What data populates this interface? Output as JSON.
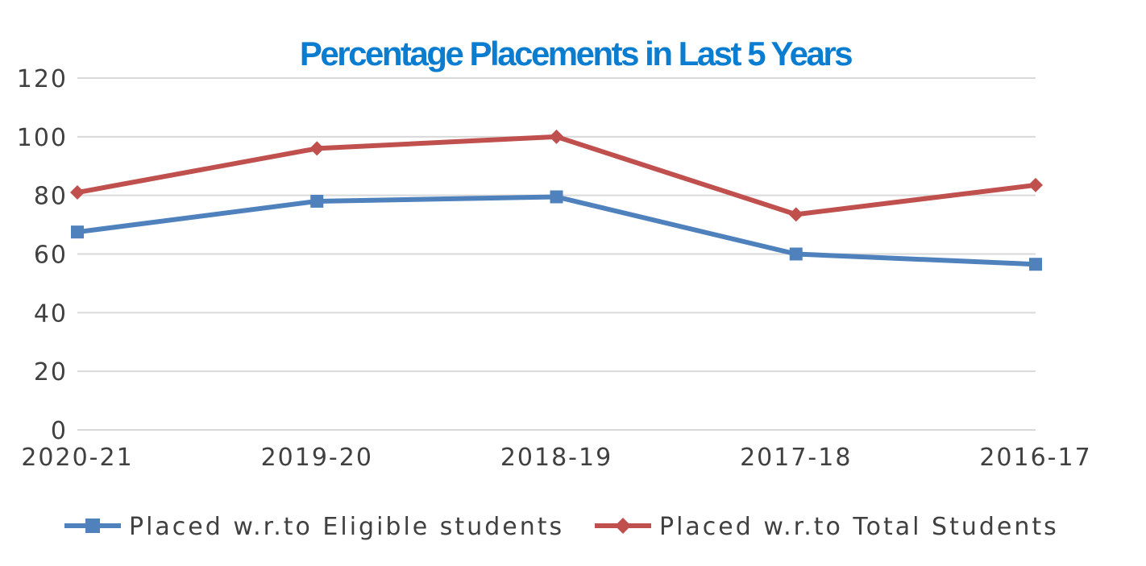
{
  "chart_data": {
    "type": "line",
    "title": "Percentage Placements in Last 5 Years",
    "xlabel": "",
    "ylabel": "",
    "categories": [
      "2020-21",
      "2019-20",
      "2018-19",
      "2017-18",
      "2016-17"
    ],
    "ylim": [
      0,
      120
    ],
    "yticks": [
      "0",
      "20",
      "40",
      "60",
      "80",
      "100",
      "120"
    ],
    "grid": true,
    "legend_position": "bottom",
    "series": [
      {
        "name": "Placed w.r.to Eligible students",
        "values": [
          67.5,
          78,
          79.5,
          60,
          56.5
        ],
        "color": "#4F81BD",
        "marker": "square"
      },
      {
        "name": "Placed w.r.to Total Students",
        "values": [
          81,
          96,
          100,
          73.5,
          83.5
        ],
        "color": "#C0504D",
        "marker": "diamond"
      }
    ],
    "title_color": "#0B7DD1",
    "grid_color": "#D9D9D9"
  }
}
